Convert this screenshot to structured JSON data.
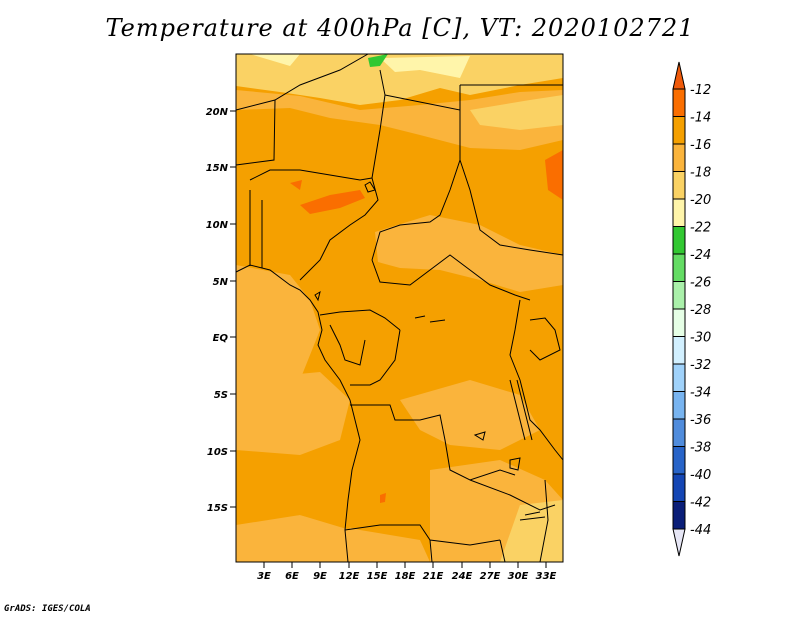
{
  "title": "Temperature at 400hPa [C], VT: 2020102721",
  "credit": "GrADS: IGES/COLA",
  "map": {
    "lat_labels": [
      "20N",
      "15N",
      "10N",
      "5N",
      "EQ",
      "5S",
      "10S",
      "15S"
    ],
    "lon_labels": [
      "3E",
      "6E",
      "9E",
      "12E",
      "15E",
      "18E",
      "21E",
      "24E",
      "27E",
      "30E",
      "33E"
    ]
  },
  "colorbar": {
    "labels": [
      "-12",
      "-14",
      "-16",
      "-18",
      "-20",
      "-22",
      "-24",
      "-26",
      "-28",
      "-30",
      "-32",
      "-34",
      "-36",
      "-38",
      "-40",
      "-42",
      "-44"
    ],
    "colors": {
      "top_arrow": "#f05a0a",
      "c_m14_m12": "#fa6e00",
      "c_m16_m14": "#f5a000",
      "c_m18_m16": "#fab43c",
      "c_m20_m18": "#fad264",
      "c_m22_m20": "#fff5aa",
      "c_m24_m22": "#32c832",
      "c_m26_m24": "#64dc64",
      "c_m28_m26": "#aaf0aa",
      "c_m30_m28": "#e6ffe6",
      "c_m32_m30": "#d2f0ff",
      "c_m34_m32": "#a0d2fa",
      "c_m36_m34": "#78b4f0",
      "c_m38_m36": "#508cdc",
      "c_m40_m38": "#2864c8",
      "c_m42_m40": "#1446b4",
      "c_m44_m42": "#0a1e78",
      "bottom_arrow": "#e6e6f5"
    }
  }
}
